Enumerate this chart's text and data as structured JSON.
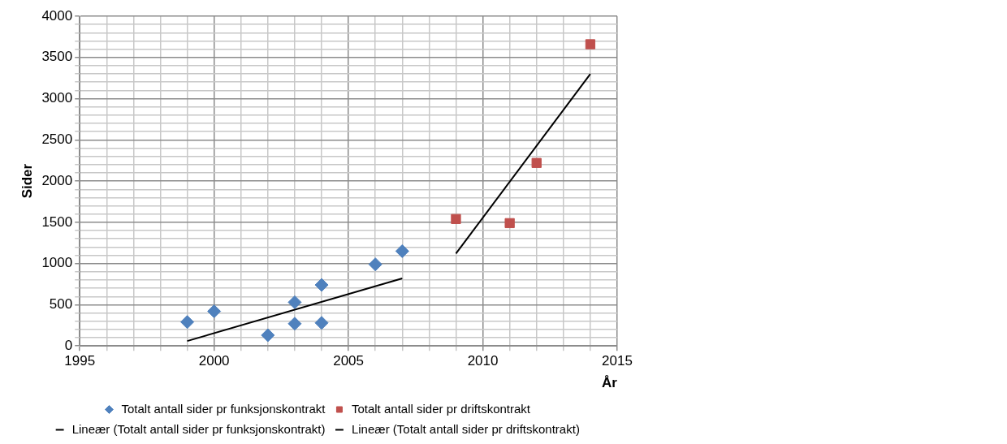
{
  "chart_data": {
    "type": "scatter",
    "xlabel": "År",
    "ylabel": "Sider",
    "xlim": [
      1995,
      2015
    ],
    "xticks": [
      1995,
      {
        "value": 1996,
        "label": null
      },
      {
        "value": 1997,
        "label": null
      },
      {
        "value": 1998,
        "label": null
      },
      {
        "value": 1999,
        "label": null
      },
      2000,
      {
        "value": 2001,
        "label": null
      },
      {
        "value": 2002,
        "label": null
      },
      {
        "value": 2003,
        "label": null
      },
      {
        "value": 2004,
        "label": null
      },
      2005,
      {
        "value": 2006,
        "label": null
      },
      {
        "value": 2007,
        "label": null
      },
      {
        "value": 2008,
        "label": null
      },
      {
        "value": 2009,
        "label": null
      },
      2010,
      {
        "value": 2011,
        "label": null
      },
      {
        "value": 2012,
        "label": null
      },
      {
        "value": 2013,
        "label": null
      },
      {
        "value": 2014,
        "label": null
      },
      2015
    ],
    "ylim": [
      0,
      4000
    ],
    "yticks": [
      0,
      {
        "value": 100,
        "label": null
      },
      {
        "value": 200,
        "label": null
      },
      {
        "value": 300,
        "label": null
      },
      {
        "value": 400,
        "label": null
      },
      500,
      {
        "value": 600,
        "label": null
      },
      {
        "value": 700,
        "label": null
      },
      {
        "value": 800,
        "label": null
      },
      {
        "value": 900,
        "label": null
      },
      1000,
      {
        "value": 1100,
        "label": null
      },
      {
        "value": 1200,
        "label": null
      },
      {
        "value": 1300,
        "label": null
      },
      {
        "value": 1400,
        "label": null
      },
      1500,
      {
        "value": 1600,
        "label": null
      },
      {
        "value": 1700,
        "label": null
      },
      {
        "value": 1800,
        "label": null
      },
      {
        "value": 1900,
        "label": null
      },
      2000,
      {
        "value": 2100,
        "label": null
      },
      {
        "value": 2200,
        "label": null
      },
      {
        "value": 2300,
        "label": null
      },
      {
        "value": 2400,
        "label": null
      },
      2500,
      {
        "value": 2600,
        "label": null
      },
      {
        "value": 2700,
        "label": null
      },
      {
        "value": 2800,
        "label": null
      },
      {
        "value": 2900,
        "label": null
      },
      3000,
      {
        "value": 3100,
        "label": null
      },
      {
        "value": 3200,
        "label": null
      },
      {
        "value": 3300,
        "label": null
      },
      {
        "value": 3400,
        "label": null
      },
      3500,
      {
        "value": 3600,
        "label": null
      },
      {
        "value": 3700,
        "label": null
      },
      {
        "value": 3800,
        "label": null
      },
      {
        "value": 3900,
        "label": null
      },
      4000
    ],
    "grid": true,
    "legend": "bottom",
    "series": [
      {
        "type": "scatter",
        "marker": "diamond",
        "name": "Totalt antall sider pr funksjonskontrakt",
        "color": "#4f81bd",
        "x": [
          1999,
          2000,
          2002,
          2003,
          2003,
          2004,
          2004,
          2006,
          2007
        ],
        "values": [
          290,
          420,
          130,
          530,
          270,
          740,
          280,
          990,
          1150
        ]
      },
      {
        "type": "scatter",
        "marker": "square",
        "name": "Totalt antall sider pr driftskontrakt",
        "color": "#c0504d",
        "x": [
          2009,
          2011,
          2012,
          2014
        ],
        "values": [
          1540,
          1490,
          2220,
          3660
        ]
      },
      {
        "type": "line",
        "marker": "none",
        "line_style": "solid",
        "name": "Lineær (Totalt antall sider pr funksjonskontrakt)",
        "color": "#000000",
        "x": [
          1999,
          2007
        ],
        "values": [
          60,
          820
        ]
      },
      {
        "type": "line",
        "marker": "none",
        "line_style": "solid",
        "name": "Lineær (Totalt antall sider pr driftskontrakt)",
        "color": "#000000",
        "x": [
          2009,
          2014
        ],
        "values": [
          1120,
          3300
        ]
      }
    ]
  }
}
